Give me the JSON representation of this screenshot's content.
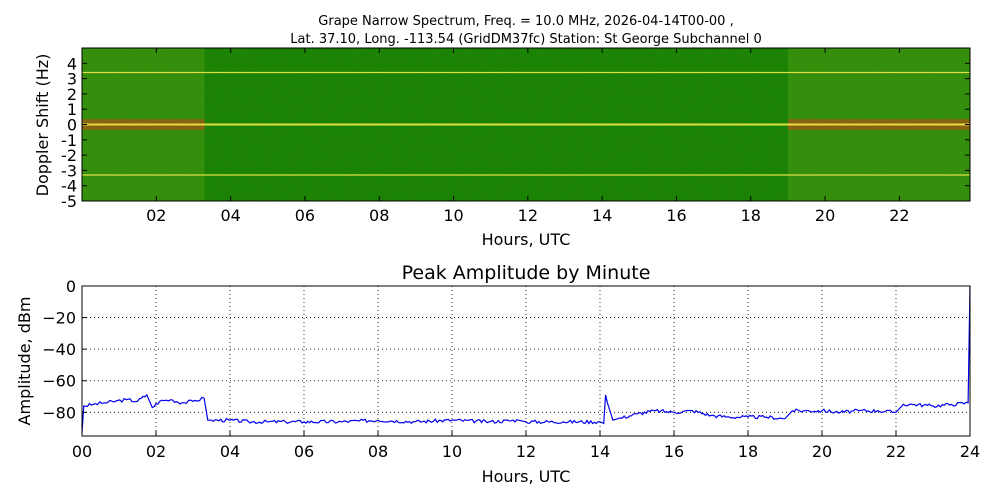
{
  "figure": {
    "title_line1": "Grape Narrow Spectrum, Freq. = 10.0 MHz, 2026-04-14T00-00 ,",
    "title_line2": "Lat.  37.10, Long. -113.54 (GridDM37fc) Station: St George Subchannel 0"
  },
  "spectrogram": {
    "ylabel": "Doppler Shift (Hz)",
    "xlabel": "Hours, UTC",
    "colors": {
      "background": "#1f7f05",
      "carrier": "#f2e84a",
      "hot": "#e8301a"
    }
  },
  "amplitude": {
    "title": "Peak Amplitude by Minute",
    "ylabel": "Amplitude, dBm",
    "xlabel": "Hours, UTC",
    "colors": {
      "line": "#0000ee",
      "grid": "#000000"
    }
  },
  "chart_data": [
    {
      "type": "heatmap",
      "title": "Grape Narrow Spectrum, Freq. = 10.0 MHz, 2026-04-14T00-00 , Lat.  37.10, Long. -113.54 (GridDM37fc) Station: St George Subchannel 0",
      "xlabel": "Hours, UTC",
      "ylabel": "Doppler Shift (Hz)",
      "xlim": [
        0,
        23.9
      ],
      "ylim": [
        -5,
        5
      ],
      "x_ticks": [
        "02",
        "04",
        "06",
        "08",
        "10",
        "12",
        "14",
        "16",
        "18",
        "20",
        "22"
      ],
      "x_tick_values": [
        2,
        4,
        6,
        8,
        10,
        12,
        14,
        16,
        18,
        20,
        22
      ],
      "y_ticks": [
        "4",
        "3",
        "2",
        "1",
        "0",
        "-1",
        "-2",
        "-3",
        "-4",
        "-5"
      ],
      "y_tick_values": [
        4,
        3,
        2,
        1,
        0,
        -1,
        -2,
        -3,
        -4,
        -5
      ],
      "carrier_lines_hz": [
        3.4,
        0,
        -3.3
      ],
      "strong_signal_hours": [
        [
          0,
          3.3
        ],
        [
          19,
          23.9
        ]
      ],
      "grid": false
    },
    {
      "type": "line",
      "title": "Peak Amplitude by Minute",
      "xlabel": "Hours, UTC",
      "ylabel": "Amplitude, dBm",
      "xlim": [
        0,
        24
      ],
      "ylim": [
        -95,
        0
      ],
      "x_ticks": [
        "00",
        "02",
        "04",
        "06",
        "08",
        "10",
        "12",
        "14",
        "16",
        "18",
        "20",
        "22",
        "24"
      ],
      "x_tick_values": [
        0,
        2,
        4,
        6,
        8,
        10,
        12,
        14,
        16,
        18,
        20,
        22,
        24
      ],
      "y_ticks": [
        "0",
        "−20",
        "−40",
        "−60",
        "−80"
      ],
      "y_tick_values": [
        0,
        -20,
        -40,
        -60,
        -80
      ],
      "grid": true,
      "series": [
        {
          "x": [
            0,
            0.05,
            0.3,
            0.6,
            0.9,
            1.2,
            1.5,
            1.75,
            1.9,
            2.1,
            2.4,
            2.7,
            3.0,
            3.3,
            3.4,
            3.5,
            4.0,
            4.5,
            5.0,
            5.5,
            6.0,
            7.0,
            8.0,
            9.0,
            10.0,
            11.0,
            11.8,
            12.0,
            13.0,
            14.0,
            14.1,
            14.15,
            14.2,
            14.35,
            14.5,
            15.0,
            15.5,
            16.0,
            16.5,
            17.0,
            17.5,
            18.0,
            18.5,
            19.0,
            19.2,
            19.5,
            20.0,
            20.5,
            21.0,
            21.5,
            22.0,
            22.2,
            22.5,
            23.0,
            23.5,
            23.95,
            24.0
          ],
          "y": [
            -93,
            -76,
            -75,
            -74,
            -73,
            -72,
            -73,
            -69,
            -77,
            -73,
            -72,
            -74,
            -73,
            -71,
            -85,
            -85,
            -85,
            -86,
            -86,
            -86,
            -86,
            -86,
            -85,
            -86,
            -85,
            -86,
            -85,
            -86,
            -86,
            -86,
            -87,
            -69,
            -74,
            -85,
            -84,
            -81,
            -79,
            -80,
            -79,
            -82,
            -83,
            -83,
            -83,
            -84,
            -79,
            -79,
            -79,
            -80,
            -79,
            -79,
            -80,
            -75,
            -75,
            -76,
            -75,
            -74,
            0
          ]
        }
      ]
    }
  ]
}
